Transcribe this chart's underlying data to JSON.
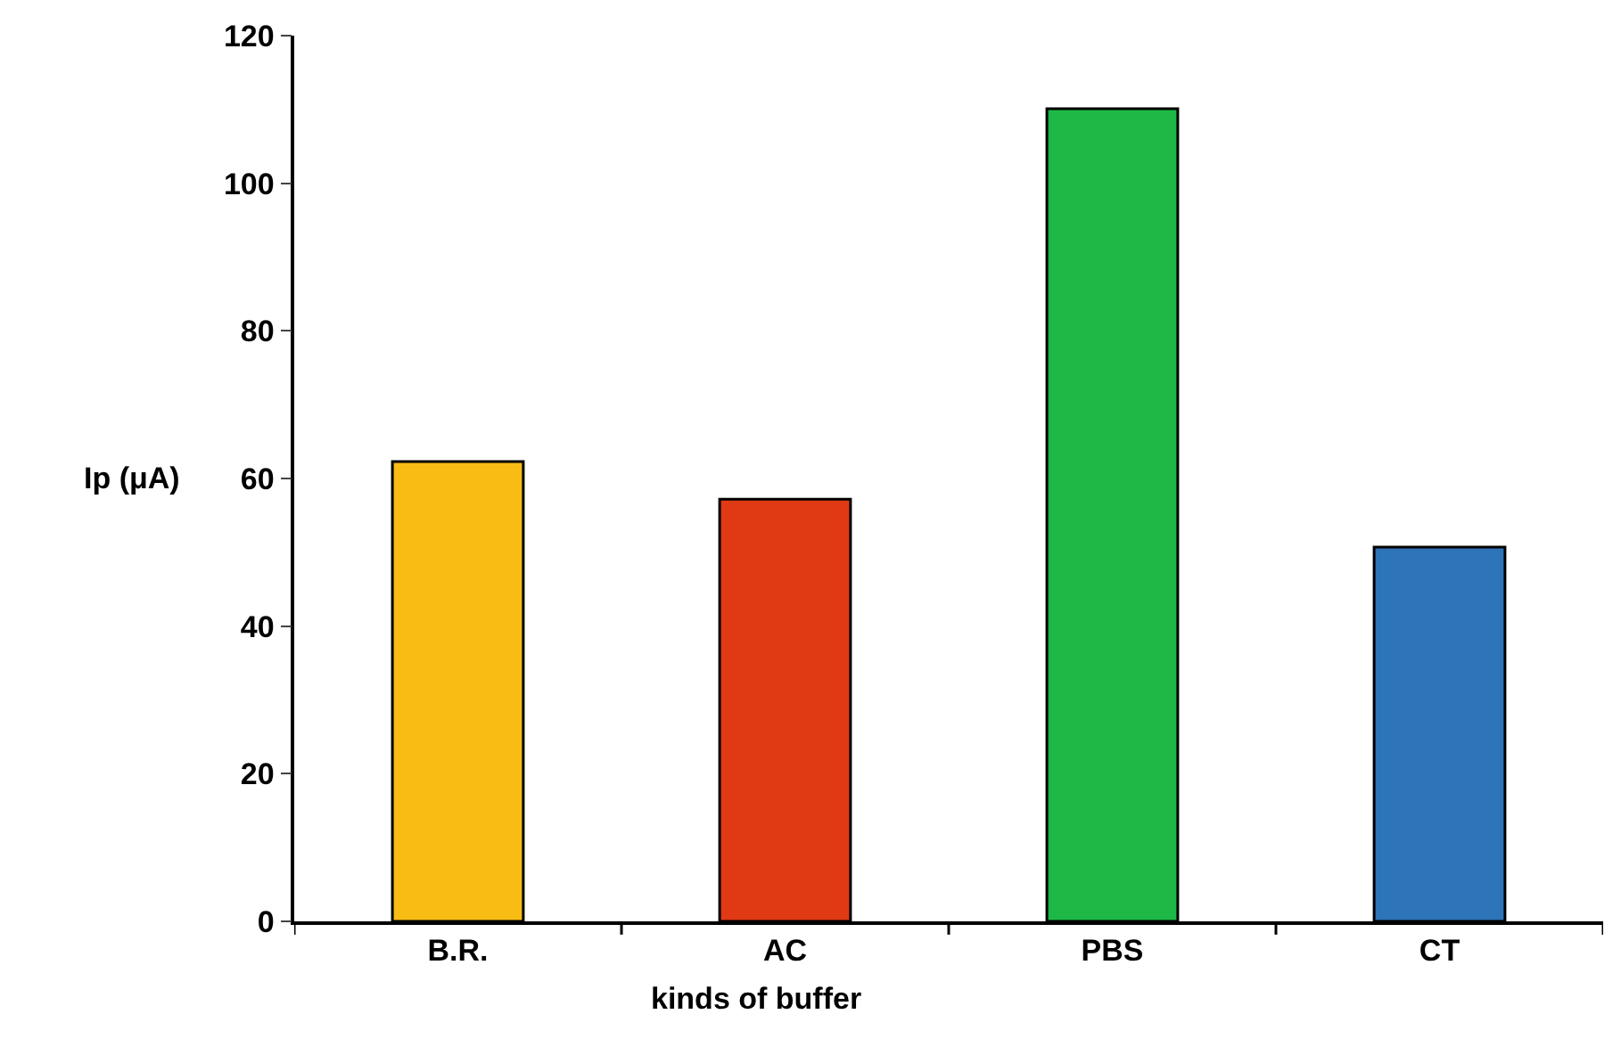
{
  "chart_data": {
    "type": "bar",
    "xlabel": "kinds of buffer",
    "ylabel": "Ip (μA)",
    "categories": [
      "B.R.",
      "AC",
      "PBS",
      "CT"
    ],
    "values": [
      62.3,
      57.2,
      110.1,
      50.7
    ],
    "colors": [
      "#f9bc15",
      "#e03a14",
      "#1db845",
      "#2d74b8"
    ],
    "ylim": [
      0,
      120
    ],
    "yticks": [
      0,
      20,
      40,
      60,
      80,
      100,
      120
    ]
  }
}
